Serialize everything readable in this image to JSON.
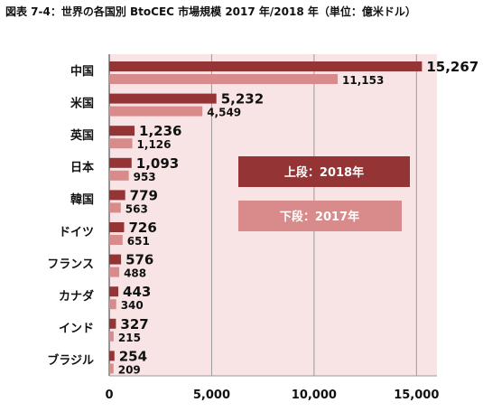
{
  "title": "図表 7-4：世界の各国別 BtoCEC 市場規模 2017 年/2018 年（単位：億米ドル）",
  "colors": {
    "background": "#f8e4e4",
    "bar_2018": "#943434",
    "bar_2017": "#d98b8b",
    "grid": "#9a9a9a"
  },
  "chart_data": {
    "type": "bar",
    "orientation": "horizontal",
    "title": "図表 7-4：世界の各国別 BtoCEC 市場規模 2017 年/2018 年（単位：億米ドル）",
    "categories": [
      "中国",
      "米国",
      "英国",
      "日本",
      "韓国",
      "ドイツ",
      "フランス",
      "カナダ",
      "インド",
      "ブラジル"
    ],
    "series": [
      {
        "name": "上段：2018年",
        "values": [
          15267,
          5232,
          1236,
          1093,
          779,
          726,
          576,
          443,
          327,
          254
        ]
      },
      {
        "name": "下段：2017年",
        "values": [
          11153,
          4549,
          1126,
          953,
          563,
          651,
          488,
          340,
          215,
          209
        ]
      }
    ],
    "value_labels": [
      [
        "15,267",
        "5,232",
        "1,236",
        "1,093",
        "779",
        "726",
        "576",
        "443",
        "327",
        "254"
      ],
      [
        "11,153",
        "4,549",
        "1,126",
        "953",
        "563",
        "651",
        "488",
        "340",
        "215",
        "209"
      ]
    ],
    "xlim": [
      0,
      16000
    ],
    "xticks": [
      0,
      5000,
      10000,
      15000
    ],
    "xtick_labels": [
      "0",
      "5,000",
      "10,000",
      "15,000"
    ],
    "grid": true,
    "legend_position": "center-right"
  }
}
